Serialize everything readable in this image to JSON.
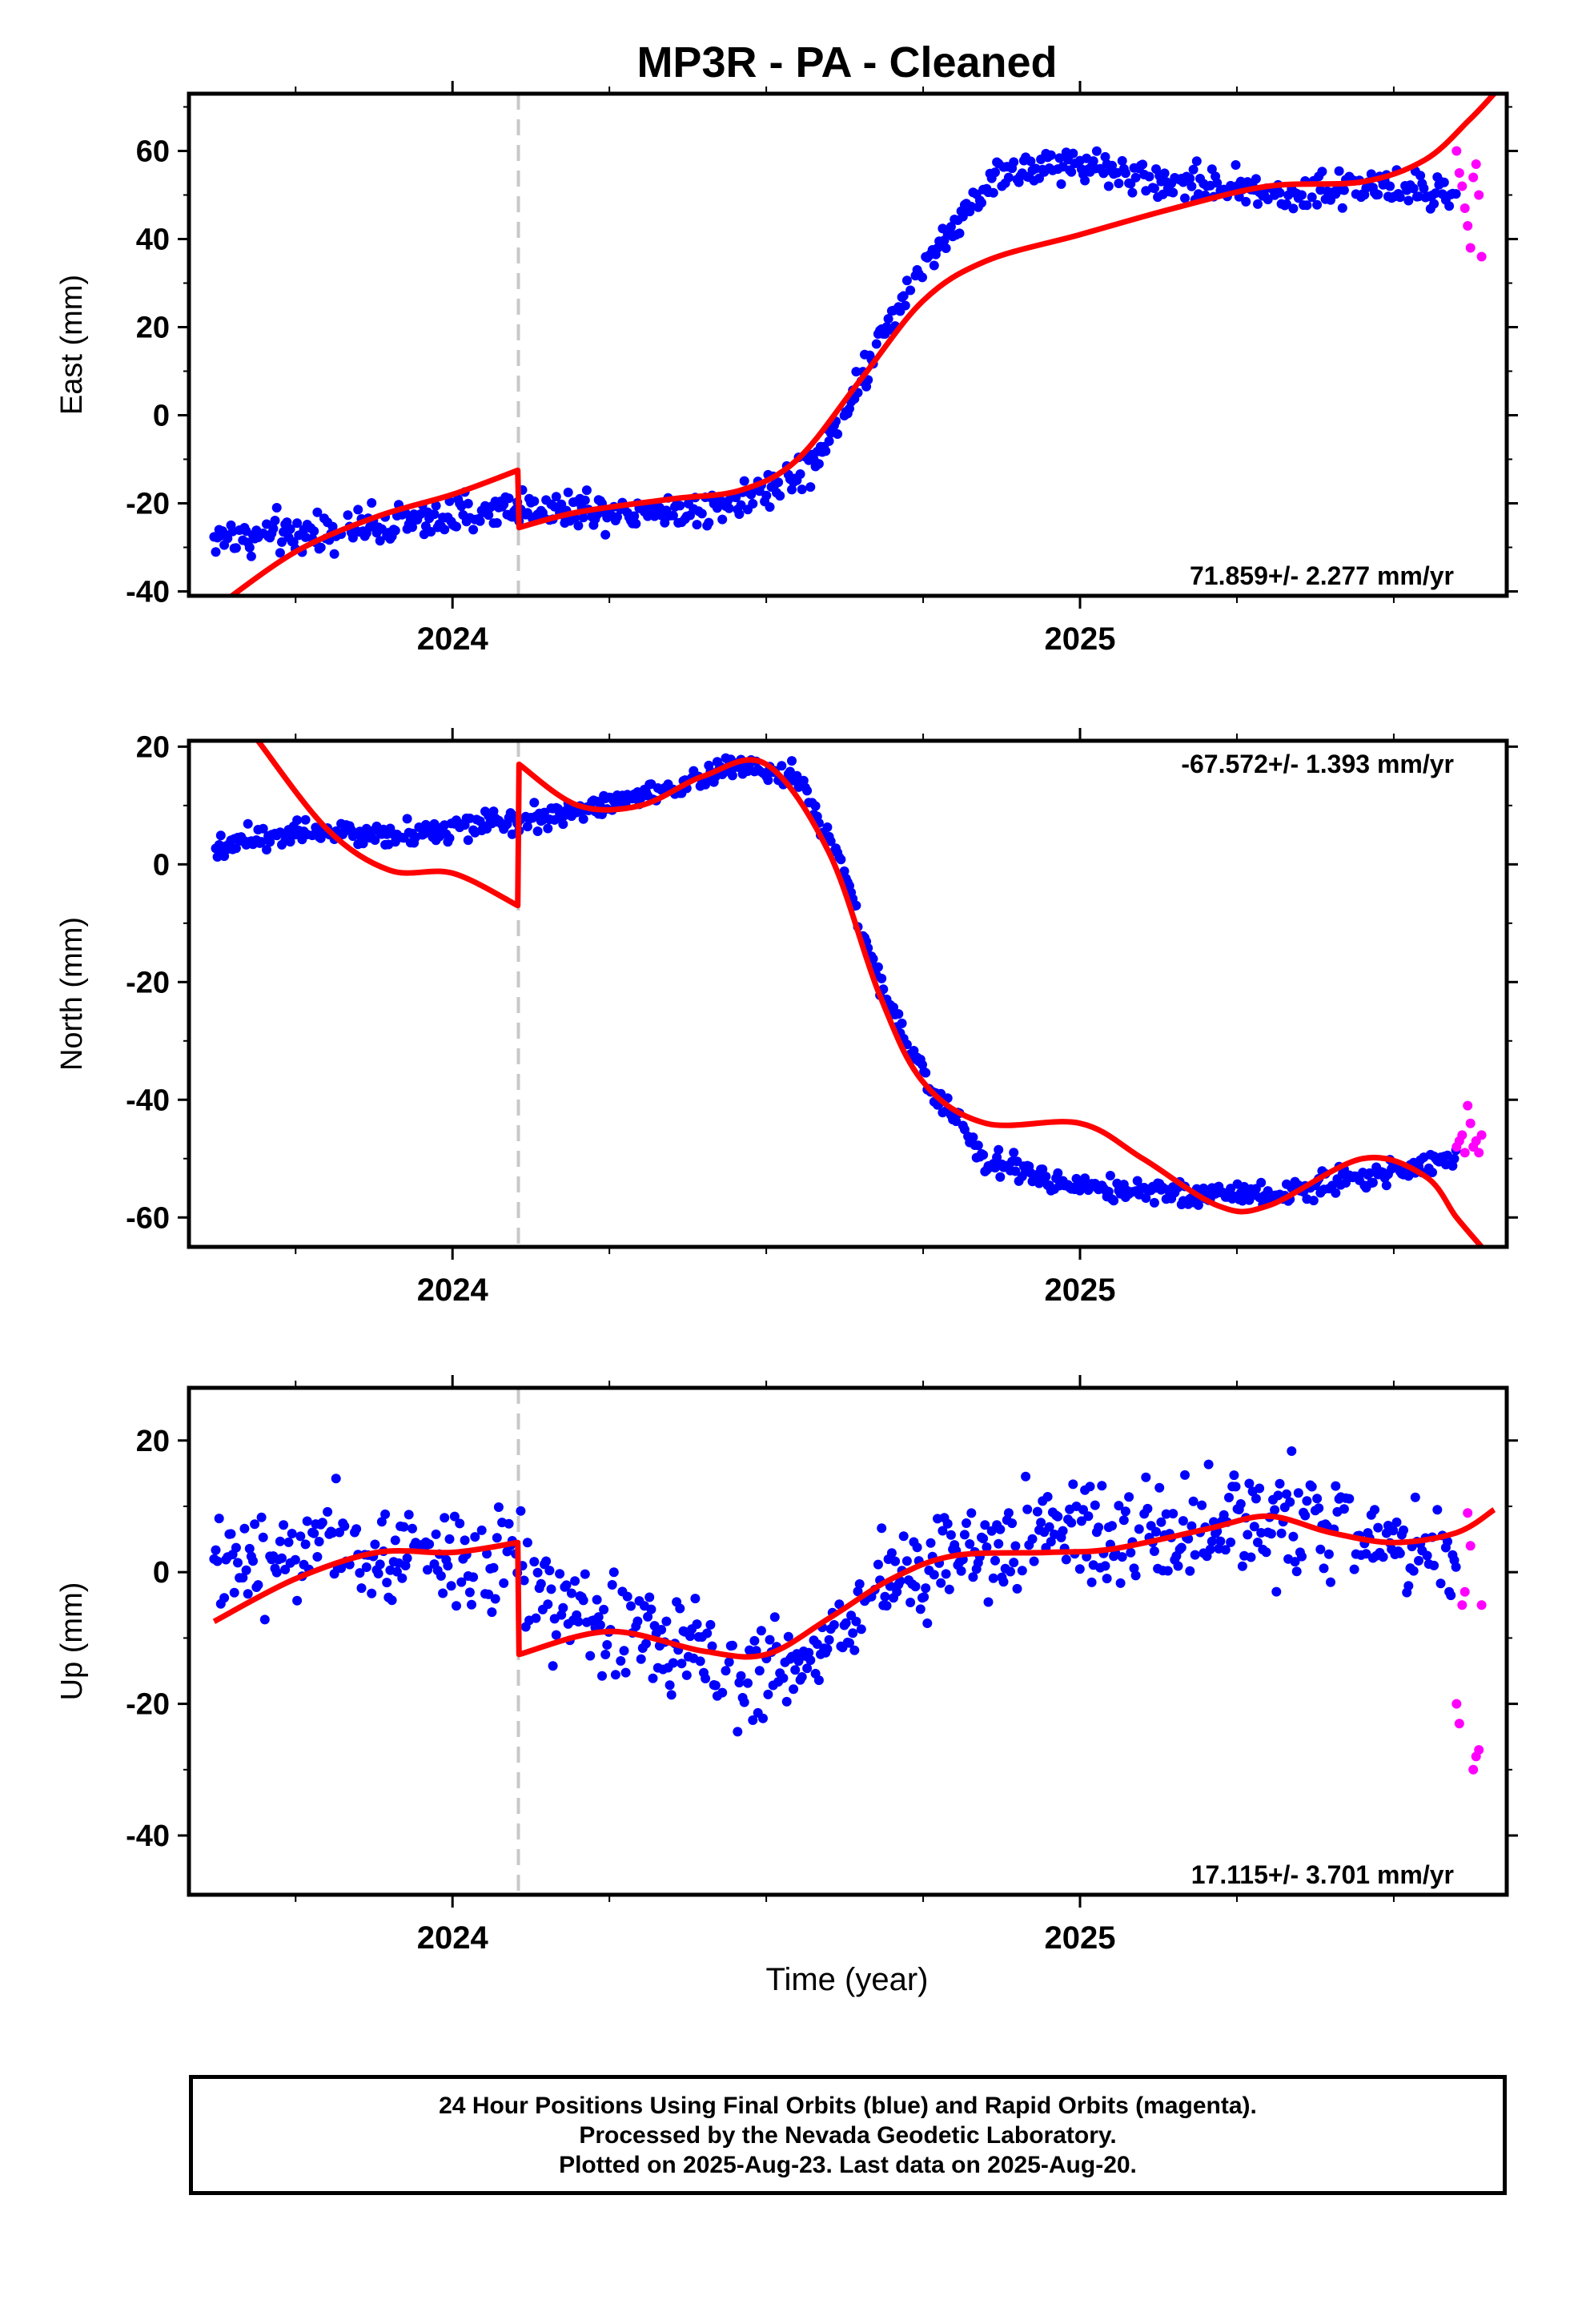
{
  "title": "MP3R  - PA - Cleaned",
  "x_axis_label": "Time (year)",
  "caption": [
    "24 Hour Positions Using Final Orbits (blue) and Rapid Orbits (magenta).",
    "Processed by the Nevada Geodetic Laboratory.",
    "Plotted on 2025-Aug-23. Last data on 2025-Aug-20."
  ],
  "colors": {
    "final_orbits": "#0000ff",
    "rapid_orbits": "#ff00ff",
    "model": "#ff0000",
    "event_line": "#c8c8c8",
    "frame": "#000000"
  },
  "chart_data": [
    {
      "type": "scatter",
      "component": "East",
      "ylabel": "East (mm)",
      "xlabel": "",
      "rate_text": "71.859+/- 2.277 mm/yr",
      "rate_position": "bottom-right",
      "xlim": [
        2023.58,
        2025.68
      ],
      "ylim": [
        -41,
        73
      ],
      "yticks": [
        -40,
        -20,
        0,
        20,
        40,
        60
      ],
      "xticks": [
        2024,
        2025
      ],
      "event_line_x": 2024.105,
      "series": [
        {
          "kind": "final_orbits",
          "knots": [
            [
              2023.62,
              -28
            ],
            [
              2023.75,
              -27
            ],
            [
              2023.9,
              -25
            ],
            [
              2024.0,
              -23
            ],
            [
              2024.1,
              -21
            ],
            [
              2024.2,
              -21
            ],
            [
              2024.35,
              -22
            ],
            [
              2024.5,
              -18
            ],
            [
              2024.58,
              -10
            ],
            [
              2024.62,
              0
            ],
            [
              2024.7,
              22
            ],
            [
              2024.78,
              40
            ],
            [
              2024.87,
              55
            ],
            [
              2025.0,
              57
            ],
            [
              2025.15,
              53
            ],
            [
              2025.3,
              50
            ],
            [
              2025.45,
              52
            ],
            [
              2025.6,
              50
            ]
          ],
          "spread": 3.6
        },
        {
          "kind": "rapid_orbits",
          "x_range": [
            2025.6,
            2025.64
          ],
          "values": [
            60,
            55,
            52,
            47,
            43,
            38,
            54,
            57,
            50,
            36
          ]
        },
        {
          "kind": "model",
          "knots": [
            [
              2023.62,
              -44
            ],
            [
              2023.75,
              -31
            ],
            [
              2023.88,
              -23
            ],
            [
              2024.0,
              -18
            ],
            [
              2024.104,
              -12.5
            ],
            [
              2024.106,
              -25.5
            ],
            [
              2024.2,
              -22
            ],
            [
              2024.35,
              -19
            ],
            [
              2024.46,
              -17
            ],
            [
              2024.55,
              -10
            ],
            [
              2024.65,
              8
            ],
            [
              2024.75,
              26
            ],
            [
              2024.85,
              35
            ],
            [
              2025.0,
              41
            ],
            [
              2025.15,
              47
            ],
            [
              2025.3,
              52
            ],
            [
              2025.45,
              53
            ],
            [
              2025.55,
              58
            ],
            [
              2025.62,
              67
            ],
            [
              2025.66,
              73
            ]
          ]
        }
      ]
    },
    {
      "type": "scatter",
      "component": "North",
      "ylabel": "North (mm)",
      "xlabel": "",
      "rate_text": "-67.572+/- 1.393 mm/yr",
      "rate_position": "top-right",
      "xlim": [
        2023.58,
        2025.68
      ],
      "ylim": [
        -65,
        21
      ],
      "yticks": [
        -60,
        -40,
        -20,
        0,
        20
      ],
      "xticks": [
        2024,
        2025
      ],
      "event_line_x": 2024.105,
      "series": [
        {
          "kind": "final_orbits",
          "knots": [
            [
              2023.62,
              3
            ],
            [
              2023.75,
              6
            ],
            [
              2023.9,
              5
            ],
            [
              2024.0,
              6
            ],
            [
              2024.1,
              7
            ],
            [
              2024.2,
              9
            ],
            [
              2024.35,
              13
            ],
            [
              2024.45,
              17
            ],
            [
              2024.55,
              15
            ],
            [
              2024.62,
              0
            ],
            [
              2024.68,
              -20
            ],
            [
              2024.75,
              -36
            ],
            [
              2024.85,
              -50
            ],
            [
              2025.0,
              -55
            ],
            [
              2025.15,
              -56
            ],
            [
              2025.3,
              -56
            ],
            [
              2025.45,
              -53
            ],
            [
              2025.6,
              -50
            ]
          ],
          "spread": 1.7
        },
        {
          "kind": "rapid_orbits",
          "x_range": [
            2025.6,
            2025.64
          ],
          "values": [
            -48,
            -47,
            -46,
            -49,
            -41,
            -44,
            -48,
            -47,
            -49,
            -46
          ]
        },
        {
          "kind": "model",
          "knots": [
            [
              2023.69,
              21
            ],
            [
              2023.8,
              6
            ],
            [
              2023.9,
              -1
            ],
            [
              2024.0,
              -1.5
            ],
            [
              2024.104,
              -7
            ],
            [
              2024.106,
              17
            ],
            [
              2024.2,
              10
            ],
            [
              2024.3,
              10
            ],
            [
              2024.4,
              15
            ],
            [
              2024.5,
              17
            ],
            [
              2024.6,
              2
            ],
            [
              2024.68,
              -22
            ],
            [
              2024.75,
              -37
            ],
            [
              2024.85,
              -44
            ],
            [
              2025.0,
              -44
            ],
            [
              2025.1,
              -50
            ],
            [
              2025.22,
              -58
            ],
            [
              2025.3,
              -58
            ],
            [
              2025.45,
              -50
            ],
            [
              2025.55,
              -53
            ],
            [
              2025.6,
              -60
            ],
            [
              2025.64,
              -65
            ]
          ]
        }
      ]
    },
    {
      "type": "scatter",
      "component": "Up",
      "ylabel": "Up (mm)",
      "xlabel": "Time (year)",
      "rate_text": "17.115+/- 3.701 mm/yr",
      "rate_position": "bottom-right",
      "xlim": [
        2023.58,
        2025.68
      ],
      "ylim": [
        -49,
        28
      ],
      "yticks": [
        -40,
        -20,
        0,
        20
      ],
      "xticks": [
        2024,
        2025
      ],
      "event_line_x": 2024.105,
      "series": [
        {
          "kind": "final_orbits",
          "knots": [
            [
              2023.62,
              0
            ],
            [
              2023.75,
              4
            ],
            [
              2023.9,
              3
            ],
            [
              2024.0,
              2
            ],
            [
              2024.1,
              1
            ],
            [
              2024.2,
              -8
            ],
            [
              2024.35,
              -10
            ],
            [
              2024.45,
              -16
            ],
            [
              2024.55,
              -14
            ],
            [
              2024.65,
              -5
            ],
            [
              2024.8,
              3
            ],
            [
              2025.0,
              6
            ],
            [
              2025.15,
              5
            ],
            [
              2025.3,
              9
            ],
            [
              2025.45,
              6
            ],
            [
              2025.6,
              2
            ]
          ],
          "spread": 6.5
        },
        {
          "kind": "rapid_orbits",
          "x_range": [
            2025.6,
            2025.64
          ],
          "values": [
            -20,
            -23,
            -5,
            -3,
            9,
            4,
            -30,
            -28,
            -27,
            -5
          ]
        },
        {
          "kind": "model",
          "knots": [
            [
              2023.62,
              -7.5
            ],
            [
              2023.75,
              -1
            ],
            [
              2023.88,
              3
            ],
            [
              2024.0,
              3
            ],
            [
              2024.104,
              4.5
            ],
            [
              2024.106,
              -12.5
            ],
            [
              2024.25,
              -9
            ],
            [
              2024.4,
              -12
            ],
            [
              2024.5,
              -12.5
            ],
            [
              2024.6,
              -7
            ],
            [
              2024.7,
              -1
            ],
            [
              2024.8,
              2.5
            ],
            [
              2024.95,
              3
            ],
            [
              2025.05,
              3.5
            ],
            [
              2025.2,
              6.5
            ],
            [
              2025.3,
              8.5
            ],
            [
              2025.4,
              6
            ],
            [
              2025.5,
              4.5
            ],
            [
              2025.6,
              6
            ],
            [
              2025.66,
              9.5
            ]
          ]
        }
      ]
    }
  ]
}
